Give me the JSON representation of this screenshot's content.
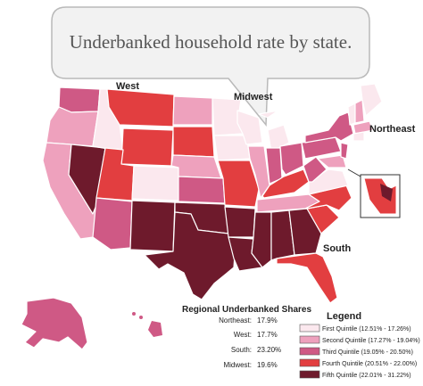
{
  "title": "Underbanked household rate by state.",
  "regions": {
    "west": "West",
    "midwest": "Midwest",
    "northeast": "Northeast",
    "south": "South"
  },
  "regional_shares": {
    "title": "Regional Underbanked Shares",
    "rows": [
      {
        "label": "Northeast:",
        "value": "17.9%"
      },
      {
        "label": "West:",
        "value": "17.7%"
      },
      {
        "label": "South:",
        "value": "23.20%"
      },
      {
        "label": "Midwest:",
        "value": "19.6%"
      }
    ]
  },
  "legend": {
    "title": "Legend",
    "items": [
      {
        "label": "First Quintile (12.51% - 17.26%)",
        "color": "#fbe8ee"
      },
      {
        "label": "Second Quintile (17.27% - 19.04%)",
        "color": "#eea1bd"
      },
      {
        "label": "Third Quintile (19.05% - 20.50%)",
        "color": "#cf5985"
      },
      {
        "label": "Fourth Quintile (20.51% - 22.00%)",
        "color": "#e23e40"
      },
      {
        "label": "Fifth Quintile (22.01% - 31.22%)",
        "color": "#6e1a2c"
      }
    ]
  },
  "colors": {
    "q1": "#fbe8ee",
    "q2": "#eea1bd",
    "q3": "#cf5985",
    "q4": "#e23e40",
    "q5": "#6e1a2c"
  }
}
